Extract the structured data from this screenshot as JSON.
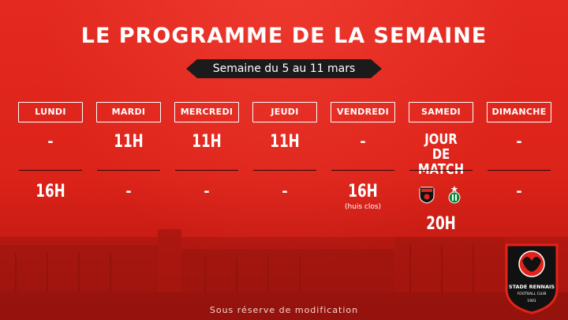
{
  "title": "LE PROGRAMME DE LA SEMAINE",
  "week": "Semaine du 5 au 11 mars",
  "days": [
    {
      "label": "LUNDI",
      "morning": "-",
      "afternoon": "16H"
    },
    {
      "label": "MARDI",
      "morning": "11H",
      "afternoon": "-"
    },
    {
      "label": "MERCREDI",
      "morning": "11H",
      "afternoon": "-"
    },
    {
      "label": "JEUDI",
      "morning": "11H",
      "afternoon": "-"
    },
    {
      "label": "VENDREDI",
      "morning": "-",
      "afternoon": "16H",
      "afternoon_note": "(huis clos)"
    },
    {
      "label": "SAMEDI",
      "morning_line1": "JOUR DE",
      "morning_line2": "MATCH",
      "match_time": "20H"
    },
    {
      "label": "DIMANCHE",
      "morning": "-",
      "afternoon": "-"
    }
  ],
  "match": {
    "home_icon": "stade-rennais-crest-icon",
    "away_icon": "as-saint-etienne-crest-icon"
  },
  "footer": "Sous réserve de modification",
  "logo": {
    "name": "STADE RENNAIS",
    "sub": "FOOTBALL CLUB",
    "year": "1901"
  },
  "colors": {
    "background": "#e2231a",
    "banner": "#1b1b1b",
    "text": "#ffffff",
    "divider": "#2a0a08"
  }
}
